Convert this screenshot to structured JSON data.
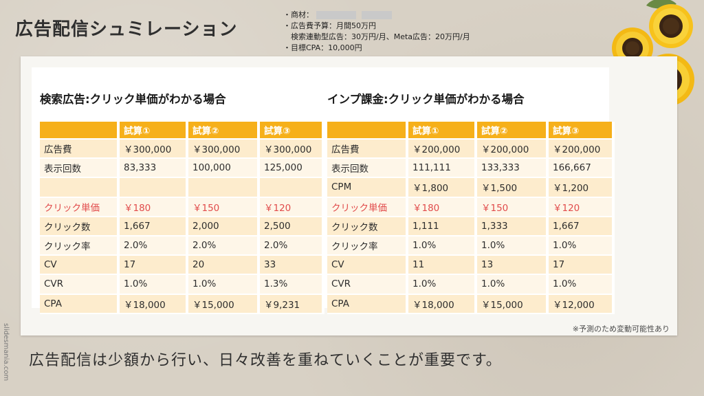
{
  "slide": {
    "title": "広告配信シュミレーション",
    "notes": {
      "line1_label": "・商材：",
      "line2": "・広告費予算：月間50万円",
      "line3": "　検索連動型広告：30万円/月、Meta広告：20万円/月",
      "line4": "・目標CPA：10,000円"
    },
    "footnote": "※予測のため変動可能性あり",
    "bottom_text": "広告配信は少額から行い、日々改善を重ねていくことが重要です。",
    "watermark": "slidesmania.com"
  },
  "colors": {
    "header": "#f6b01a",
    "row_odd": "#fdeccd",
    "row_even": "#fef6e8",
    "highlight": "#e14b4b"
  },
  "left_table": {
    "title": "検索広告:クリック単価がわかる場合",
    "headers": [
      "",
      "試算①",
      "試算②",
      "試算③"
    ],
    "rows": [
      {
        "label": "広告費",
        "values": [
          "￥300,000",
          "￥300,000",
          "￥300,000"
        ]
      },
      {
        "label": "表示回数",
        "values": [
          "83,333",
          "100,000",
          "125,000"
        ]
      },
      {
        "label": "",
        "values": [
          "",
          "",
          ""
        ]
      },
      {
        "label": "クリック単価",
        "values": [
          "￥180",
          "￥150",
          "￥120"
        ]
      },
      {
        "label": "クリック数",
        "values": [
          "1,667",
          "2,000",
          "2,500"
        ]
      },
      {
        "label": "クリック率",
        "values": [
          "2.0%",
          "2.0%",
          "2.0%"
        ]
      },
      {
        "label": "CV",
        "values": [
          "17",
          "20",
          "33"
        ]
      },
      {
        "label": "CVR",
        "values": [
          "1.0%",
          "1.0%",
          "1.3%"
        ]
      },
      {
        "label": "CPA",
        "values": [
          "￥18,000",
          "￥15,000",
          "￥9,231"
        ]
      }
    ]
  },
  "right_table": {
    "title": "インプ課金:クリック単価がわかる場合",
    "headers": [
      "",
      "試算①",
      "試算②",
      "試算③"
    ],
    "rows": [
      {
        "label": "広告費",
        "values": [
          "￥200,000",
          "￥200,000",
          "￥200,000"
        ]
      },
      {
        "label": "表示回数",
        "values": [
          "111,111",
          "133,333",
          "166,667"
        ]
      },
      {
        "label": "CPM",
        "values": [
          "￥1,800",
          "￥1,500",
          "￥1,200"
        ]
      },
      {
        "label": "クリック単価",
        "values": [
          "￥180",
          "￥150",
          "￥120"
        ]
      },
      {
        "label": "クリック数",
        "values": [
          "1,111",
          "1,333",
          "1,667"
        ]
      },
      {
        "label": "クリック率",
        "values": [
          "1.0%",
          "1.0%",
          "1.0%"
        ]
      },
      {
        "label": "CV",
        "values": [
          "11",
          "13",
          "17"
        ]
      },
      {
        "label": "CVR",
        "values": [
          "1.0%",
          "1.0%",
          "1.0%"
        ]
      },
      {
        "label": "CPA",
        "values": [
          "￥18,000",
          "￥15,000",
          "￥12,000"
        ]
      }
    ]
  }
}
